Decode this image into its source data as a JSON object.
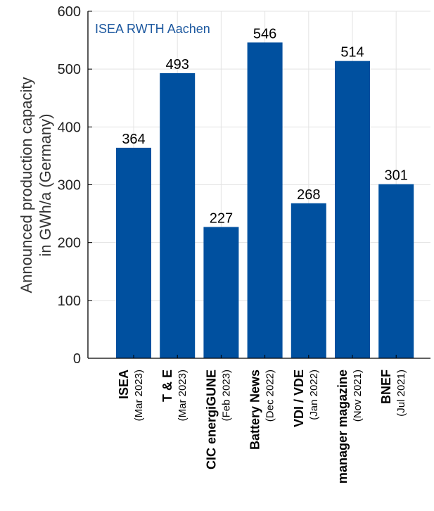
{
  "chart_data": {
    "type": "bar",
    "categories": [
      {
        "name": "ISEA",
        "date": "(Mar 2023)"
      },
      {
        "name": "T & E",
        "date": "(Mar 2023)"
      },
      {
        "name": "CIC energiGUNE",
        "date": "(Feb 2023)"
      },
      {
        "name": "Battery News",
        "date": "(Dec 2022)"
      },
      {
        "name": "VDI / VDE",
        "date": "(Jan 2022)"
      },
      {
        "name": "manager magazine",
        "date": "(Nov 2021)"
      },
      {
        "name": "BNEF",
        "date": "(Jul 2021)"
      }
    ],
    "values": [
      364,
      493,
      227,
      546,
      268,
      514,
      301
    ],
    "data_labels": [
      "364",
      "493",
      "227",
      "546",
      "268",
      "514",
      "301"
    ],
    "ylabel_line1": "Announced production capacity",
    "ylabel_line2": "in GWh/a (Germany)",
    "ylim": [
      0,
      600
    ],
    "yticks": [
      0,
      100,
      200,
      300,
      400,
      500,
      600
    ],
    "grid": true,
    "annotation": "ISEA RWTH Aachen",
    "bar_color": "#00509f",
    "annotation_color": "#1f5aa0",
    "grid_color": "#e3e3e3"
  }
}
